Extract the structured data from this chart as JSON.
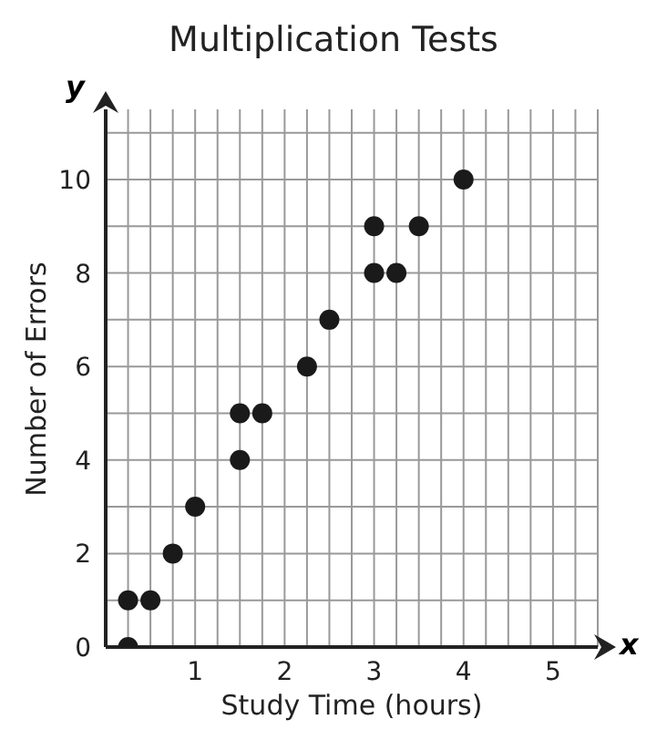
{
  "chart_data": {
    "type": "scatter",
    "title": "Multiplication Tests",
    "xlabel": "Study Time (hours)",
    "ylabel": "Number of Errors",
    "annotations": [
      "x",
      "y"
    ],
    "x": [
      0.25,
      0.25,
      0.5,
      0.75,
      1,
      1.5,
      1.5,
      1.75,
      2.25,
      2.5,
      3,
      3.25,
      3,
      3.5,
      4
    ],
    "values": [
      0,
      1,
      1,
      2,
      3,
      4,
      5,
      5,
      6,
      7,
      8,
      8,
      9,
      9,
      10
    ],
    "color": "#1a1a1a",
    "marker": "circle",
    "grid": true,
    "xlim": [
      0,
      5.5
    ],
    "ylim": [
      0,
      11.5
    ],
    "xticks": [
      {
        "value": 0,
        "label": null
      },
      {
        "value": 0.25,
        "label": null
      },
      {
        "value": 0.5,
        "label": null
      },
      {
        "value": 0.75,
        "label": null
      },
      1,
      {
        "value": 1.25,
        "label": null
      },
      {
        "value": 1.5,
        "label": null
      },
      {
        "value": 1.75,
        "label": null
      },
      2,
      {
        "value": 2.25,
        "label": null
      },
      {
        "value": 2.5,
        "label": null
      },
      {
        "value": 2.75,
        "label": null
      },
      3,
      {
        "value": 3.25,
        "label": null
      },
      {
        "value": 3.5,
        "label": null
      },
      {
        "value": 3.75,
        "label": null
      },
      4,
      {
        "value": 4.25,
        "label": null
      },
      {
        "value": 4.5,
        "label": null
      },
      {
        "value": 4.75,
        "label": null
      },
      5,
      {
        "value": 5.25,
        "label": null
      },
      {
        "value": 5.5,
        "label": null
      }
    ],
    "yticks": [
      0,
      {
        "value": 1,
        "label": null
      },
      2,
      {
        "value": 3,
        "label": null
      },
      4,
      {
        "value": 5,
        "label": null
      },
      6,
      {
        "value": 7,
        "label": null
      },
      8,
      {
        "value": 9,
        "label": null
      },
      10,
      {
        "value": 11,
        "label": null
      }
    ]
  }
}
